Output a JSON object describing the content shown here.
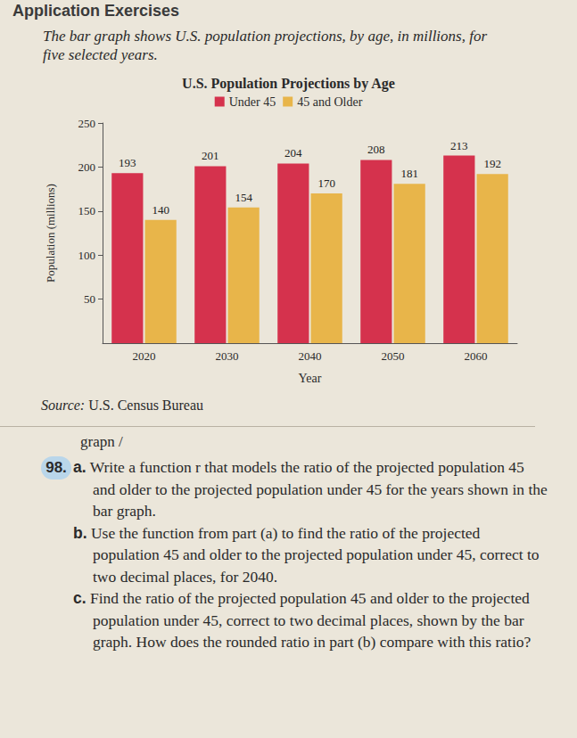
{
  "header": "Application Exercises",
  "intro": "The bar graph shows U.S. population projections, by age, in millions, for five selected years.",
  "chart_data": {
    "type": "bar",
    "title": "U.S. Population Projections by Age",
    "categories": [
      "2020",
      "2030",
      "2040",
      "2050",
      "2060"
    ],
    "series": [
      {
        "name": "Under 45",
        "color": "#d5324d",
        "values": [
          193,
          201,
          204,
          208,
          213
        ]
      },
      {
        "name": "45 and Older",
        "color": "#e8b54a",
        "values": [
          140,
          154,
          170,
          181,
          192
        ]
      }
    ],
    "x_label": "Year",
    "y_label": "Population (millions)",
    "ylim": [
      0,
      250
    ],
    "yticks": [
      50,
      100,
      150,
      200,
      250
    ],
    "grid": false,
    "legend": "top",
    "data_labels": true
  },
  "source": {
    "label": "Source:",
    "text": "U.S. Census Bureau"
  },
  "fragment": "grapn /",
  "exercise": {
    "number": "98.",
    "parts": [
      {
        "letter": "a.",
        "text": "Write a function r that models the ratio of the projected population 45 and older to the projected population under 45 for the years shown in the bar graph."
      },
      {
        "letter": "b.",
        "text": "Use the function from part (a) to find the ratio of the projected population 45 and older to the projected population under 45, correct to two decimal places, for 2040."
      },
      {
        "letter": "c.",
        "text": "Find the ratio of the projected population 45 and older to the projected population under 45, correct to two decimal places, shown by the bar graph. How does the rounded ratio in part (b) compare with this ratio?"
      }
    ]
  }
}
